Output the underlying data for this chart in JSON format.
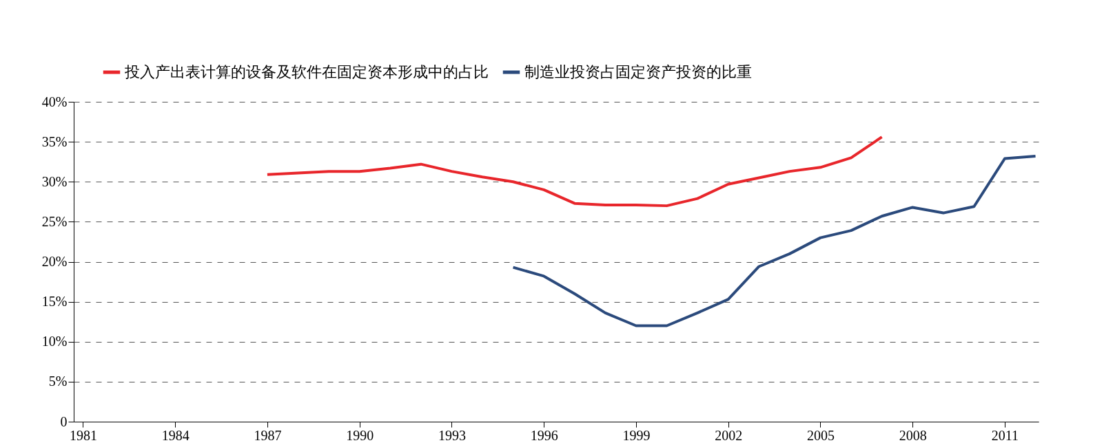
{
  "chart_data": {
    "type": "line",
    "legend": "top",
    "grid": "y",
    "marker": "none",
    "line_style": "solid",
    "xlim": [
      1980.7,
      2012.1
    ],
    "xticks": [
      1981,
      1984,
      1987,
      1990,
      1993,
      1996,
      1999,
      2002,
      2005,
      2008,
      2011
    ],
    "ylim": [
      0,
      40
    ],
    "yticks": [
      {
        "value": 0,
        "label": "0"
      },
      {
        "value": 5,
        "label": "5%"
      },
      {
        "value": 10,
        "label": "10%"
      },
      {
        "value": 15,
        "label": "15%"
      },
      {
        "value": 20,
        "label": "20%"
      },
      {
        "value": 25,
        "label": "25%"
      },
      {
        "value": 30,
        "label": "30%"
      },
      {
        "value": 35,
        "label": "35%"
      },
      {
        "value": 40,
        "label": "40%"
      }
    ],
    "series": [
      {
        "name": "投入产出表计算的设备及软件在固定资本形成中的占比",
        "color": "#e8262b",
        "x": [
          1987,
          1988,
          1989,
          1990,
          1991,
          1992,
          1993,
          1994,
          1995,
          1996,
          1997,
          1998,
          1999,
          2000,
          2001,
          2002,
          2003,
          2004,
          2005,
          2006,
          2007
        ],
        "values": [
          30.9,
          31.1,
          31.3,
          31.3,
          31.7,
          32.2,
          31.3,
          30.6,
          30.0,
          29.0,
          27.3,
          27.1,
          27.1,
          27.0,
          27.9,
          29.7,
          30.5,
          31.3,
          31.8,
          33.0,
          35.6
        ]
      },
      {
        "name": "制造业投资占固定资产投资的比重",
        "color": "#2b4a7c",
        "x": [
          1995,
          1996,
          1997,
          1998,
          1999,
          2000,
          2001,
          2002,
          2003,
          2004,
          2005,
          2006,
          2007,
          2008,
          2009,
          2010,
          2011,
          2012
        ],
        "values": [
          19.3,
          18.2,
          16.0,
          13.6,
          12.0,
          12.0,
          13.6,
          15.3,
          19.4,
          21.0,
          23.0,
          23.9,
          25.7,
          26.8,
          26.1,
          26.9,
          32.9,
          33.2
        ]
      }
    ]
  }
}
